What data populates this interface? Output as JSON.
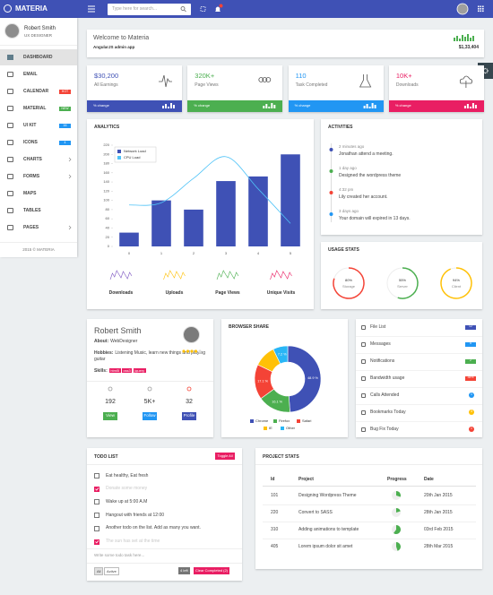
{
  "topbar": {
    "brand": "MATERIA",
    "search_placeholder": "Type here for search..."
  },
  "sidebar": {
    "user_name": "Robert Smith",
    "user_role": "UX DESIGNER",
    "menu": [
      {
        "label": "DASHBOARD"
      },
      {
        "label": "EMAIL"
      },
      {
        "label": "CALENDAR",
        "badge": "HOT",
        "badge_color": "#f44336"
      },
      {
        "label": "MATERIAL",
        "badge": "NEW",
        "badge_color": "#4caf50"
      },
      {
        "label": "UI KIT",
        "badge": "16",
        "badge_color": "#2196f3"
      },
      {
        "label": "ICONS",
        "badge": "4",
        "badge_color": "#2196f3"
      },
      {
        "label": "CHARTS"
      },
      {
        "label": "FORMS"
      },
      {
        "label": "MAPS"
      },
      {
        "label": "TABLES"
      },
      {
        "label": "PAGES"
      }
    ],
    "footer": "2015 © MATERIA"
  },
  "welcome": {
    "title": "Welcome to Materia",
    "subtitle": "AngularJS admin app",
    "amount": "$1,33,404"
  },
  "stat_cards": [
    {
      "value": "$30,200",
      "label": "All Earnings",
      "footer": "% change",
      "color": "#3f51b5"
    },
    {
      "value": "320K+",
      "label": "Page Views",
      "footer": "% change",
      "color": "#4caf50"
    },
    {
      "value": "110",
      "label": "Task Completed",
      "footer": "% change",
      "color": "#2196f3"
    },
    {
      "value": "10K+",
      "label": "Downloads",
      "footer": "% change",
      "color": "#e91e63"
    }
  ],
  "analytics_footer": {
    "items": [
      "Downloads",
      "Uploads",
      "Page Views",
      "Unique Visits"
    ],
    "colors": [
      "#7e57c2",
      "#ffc107",
      "#4caf50",
      "#e91e63"
    ]
  },
  "activities": {
    "title": "ACTIVITIES",
    "items": [
      {
        "time": "2 minutes ago",
        "text": "Jonathan attend a meeting.",
        "color": "#3f51b5"
      },
      {
        "time": "1 day ago",
        "text": "Designed the wordpress theme",
        "color": "#4caf50"
      },
      {
        "time": "4:32 pm",
        "text": "Lily created her account.",
        "color": "#f44336"
      },
      {
        "time": "3 days ago",
        "text": "Your domain will expired in 13 days.",
        "color": "#2196f3"
      }
    ]
  },
  "profile": {
    "name": "Robert Smith",
    "about_label": "About:",
    "about": "WebDesigner",
    "hobbies_label": "Hobbies:",
    "hobbies": "Listening Music, learn new things and playing guitar",
    "skills_label": "Skills:",
    "skills": [
      "html5",
      "css3",
      "jquery"
    ],
    "stats": [
      {
        "value": "192",
        "label": "View",
        "color": "#4caf50"
      },
      {
        "value": "5K+",
        "label": "Follow",
        "color": "#2196f3"
      },
      {
        "value": "32",
        "label": "Profile",
        "color": "#3f51b5"
      }
    ]
  },
  "quick_links": {
    "items": [
      {
        "label": "File List",
        "badge": "12",
        "color": "#3f51b5"
      },
      {
        "label": "Messages",
        "badge": "5",
        "color": "#2196f3"
      },
      {
        "label": "Notifications",
        "badge": "2",
        "color": "#4caf50"
      },
      {
        "label": "Bandwidth usage",
        "badge": "35%",
        "color": "#f44336"
      },
      {
        "label": "Calls Attended",
        "badge": "1",
        "color": "#2196f3"
      },
      {
        "label": "Bookmarks Today",
        "badge": "3",
        "color": "#ffc107"
      },
      {
        "label": "Bug Fix Today",
        "badge": "1",
        "color": "#f44336"
      }
    ]
  },
  "todo": {
    "title": "TODO LIST",
    "toggle": "Toggle All",
    "items": [
      {
        "text": "Eat healthy, Eat fresh",
        "done": false
      },
      {
        "text": "Donate some money",
        "done": true
      },
      {
        "text": "Wake up at 5:00 A.M",
        "done": false
      },
      {
        "text": "Hangout with friends at 12:00",
        "done": false
      },
      {
        "text": "Another todo on the list. Add as many you want.",
        "done": false
      },
      {
        "text": "The sun has set at the time",
        "done": true
      }
    ],
    "input_placeholder": "Write some todo task here...",
    "filters": [
      "All",
      "Active"
    ],
    "left": "4 left",
    "clear": "Clear Completed (2)"
  },
  "projects": {
    "title": "PROJECT STATS",
    "columns": [
      "Id",
      "Project",
      "Progress",
      "Date"
    ],
    "rows": [
      {
        "id": "101",
        "name": "Designing Wordpress Theme",
        "progress": 30,
        "date": "20th Jan 2015"
      },
      {
        "id": "220",
        "name": "Convert to SASS",
        "progress": 20,
        "date": "28th Jan 2015"
      },
      {
        "id": "310",
        "name": "Adding animations to template",
        "progress": 60,
        "date": "03rd Feb 2015"
      },
      {
        "id": "405",
        "name": "Lorem ipsum dolor sit amet",
        "progress": 45,
        "date": "28th Mar 2015"
      }
    ],
    "progress_color": "#4caf50"
  },
  "chart_data": [
    {
      "type": "bar",
      "title": "ANALYTICS",
      "categories": [
        "0",
        "1",
        "2",
        "3",
        "4",
        "5"
      ],
      "series": [
        {
          "name": "Network Load",
          "type": "bar",
          "color": "#3f51b5",
          "values": [
            30,
            100,
            80,
            142,
            152,
            200
          ]
        },
        {
          "name": "CPU Load",
          "type": "line",
          "color": "#4fc3f7",
          "values": [
            90,
            95,
            148,
            195,
            125,
            50
          ]
        }
      ],
      "ylim": [
        0,
        220
      ],
      "yticks": [
        0,
        20,
        40,
        60,
        80,
        100,
        120,
        140,
        160,
        180,
        200,
        220
      ],
      "legend": "top-left",
      "grid": false
    },
    {
      "type": "donut",
      "title": "BROWSER SHARE",
      "categories": [
        "Chrome",
        "Firefox",
        "Safari",
        "IE",
        "Other"
      ],
      "values": [
        48.9,
        16.1,
        17.1,
        10.7,
        7.2
      ],
      "value_labels": [
        "48.9 %",
        "16.1 %",
        "17.1 %",
        null,
        "7.2 %"
      ],
      "colors": [
        "#3f51b5",
        "#4caf50",
        "#f44336",
        "#ffc107",
        "#29b6f6"
      ],
      "legend": "bottom"
    },
    {
      "type": "gauge",
      "title": "USAGE STATS",
      "categories": [
        "Storage",
        "Server",
        "Client"
      ],
      "values": [
        80,
        55,
        94
      ],
      "value_labels": [
        "80%",
        "55%",
        "94%"
      ],
      "colors": [
        "#f44336",
        "#4caf50",
        "#ffc107"
      ],
      "ylim": [
        0,
        100
      ]
    }
  ]
}
